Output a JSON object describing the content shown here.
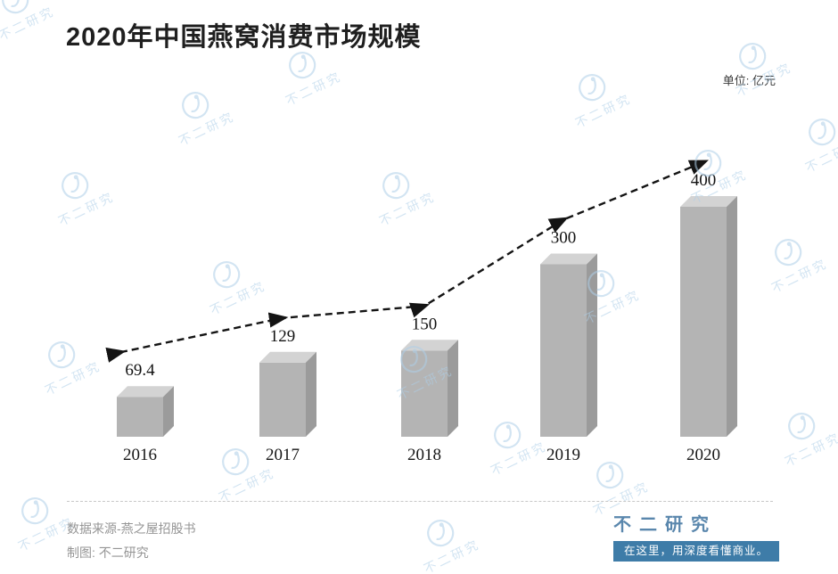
{
  "title": "2020年中国燕窝消费市场规模",
  "unit_label": "单位: 亿元",
  "chart_data": {
    "type": "bar",
    "title": "2020年中国燕窝消费市场规模",
    "categories": [
      "2016",
      "2017",
      "2018",
      "2019",
      "2020"
    ],
    "values": [
      69.4,
      129,
      150,
      300,
      400
    ],
    "value_labels": [
      "69.4",
      "129",
      "150",
      "300",
      "400"
    ],
    "unit": "亿元",
    "ylim": [
      0,
      430
    ],
    "bar_color": "#b4b4b4",
    "bar_top_color": "#d3d3d3",
    "bar_side_color": "#9b9b9b",
    "trend_line": {
      "style": "dashed",
      "color": "#141414",
      "arrows": true
    },
    "legend": "none",
    "grid": false
  },
  "footer": {
    "source": "数据来源-燕之屋招股书",
    "credit": "制图: 不二研究"
  },
  "branding": {
    "name": "不二研究",
    "tagline": "在这里，用深度看懂商业。",
    "accent_color": "#3e7ca8",
    "text_color": "#5a87ad"
  },
  "watermark": {
    "text": "不二研究",
    "color": "#aecfe8"
  }
}
